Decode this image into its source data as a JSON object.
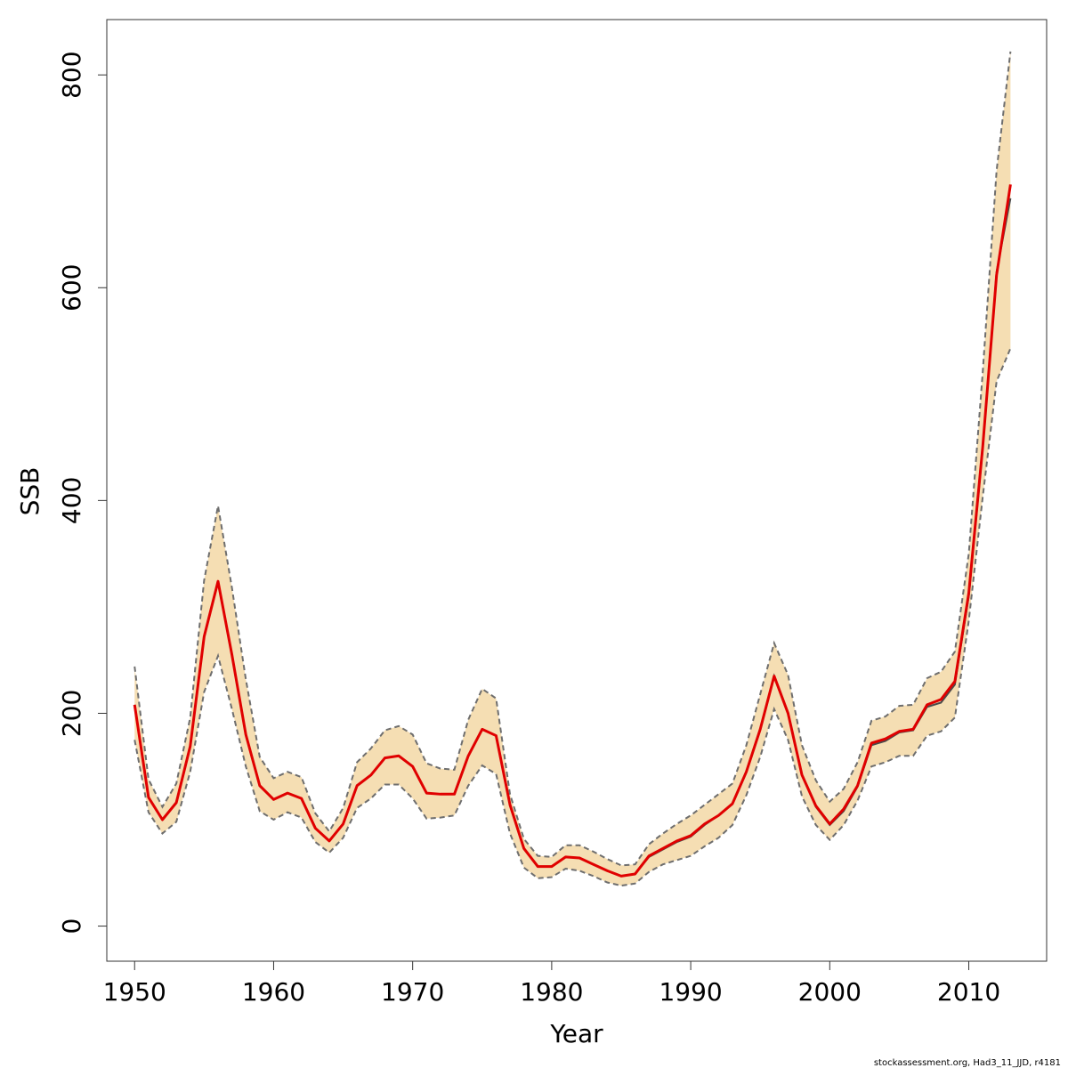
{
  "chart_data": {
    "type": "area",
    "title": "",
    "xlabel": "Year",
    "ylabel": "SSB",
    "xlim": [
      1948,
      2015.6
    ],
    "ylim": [
      -33,
      852
    ],
    "x_ticks": [
      1950,
      1960,
      1970,
      1980,
      1990,
      2000,
      2010
    ],
    "y_ticks": [
      0,
      200,
      400,
      600,
      800
    ],
    "grid": false,
    "legend": "none",
    "colors": {
      "band": "#f5deb3",
      "bounds": "#6e6e6e",
      "estimate": "#e00000",
      "alt_estimate": "#4a4a4a"
    },
    "x": [
      1950,
      1951,
      1952,
      1953,
      1954,
      1955,
      1956,
      1957,
      1958,
      1959,
      1960,
      1961,
      1962,
      1963,
      1964,
      1965,
      1966,
      1967,
      1968,
      1969,
      1970,
      1971,
      1972,
      1973,
      1974,
      1975,
      1976,
      1977,
      1978,
      1979,
      1980,
      1981,
      1982,
      1983,
      1984,
      1985,
      1986,
      1987,
      1988,
      1989,
      1990,
      1991,
      1992,
      1993,
      1994,
      1995,
      1996,
      1997,
      1998,
      1999,
      2000,
      2001,
      2002,
      2003,
      2004,
      2005,
      2006,
      2007,
      2008,
      2009,
      2010,
      2011,
      2012,
      2013
    ],
    "series": [
      {
        "role": "upper",
        "values": [
          244,
          138,
          112,
          134,
          196,
          325,
          395,
          318,
          232,
          159,
          139,
          145,
          140,
          106,
          89,
          111,
          154,
          167,
          184,
          188,
          180,
          153,
          148,
          147,
          194,
          223,
          214,
          124,
          82,
          66,
          65,
          76,
          76,
          70,
          63,
          57,
          58,
          77,
          87,
          96,
          104,
          114,
          124,
          134,
          170,
          218,
          266,
          236,
          170,
          137,
          117,
          129,
          154,
          193,
          197,
          207,
          208,
          233,
          239,
          258,
          350,
          520,
          710,
          822
        ],
        "values_note_unused": null
      },
      {
        "role": "lower",
        "values": [
          175,
          107,
          87,
          98,
          145,
          220,
          254,
          204,
          150,
          108,
          100,
          107,
          102,
          79,
          69,
          83,
          111,
          120,
          133,
          133,
          120,
          101,
          102,
          104,
          132,
          151,
          143,
          87,
          55,
          45,
          46,
          54,
          52,
          47,
          41,
          38,
          40,
          51,
          58,
          62,
          66,
          75,
          83,
          95,
          123,
          159,
          204,
          175,
          122,
          95,
          81,
          95,
          118,
          150,
          154,
          160,
          160,
          179,
          183,
          196,
          287,
          403,
          512,
          543
        ]
      },
      {
        "role": "estimate",
        "values": [
          208,
          121,
          100,
          116,
          169,
          272,
          324,
          255,
          180,
          132,
          119,
          125,
          120,
          92,
          80,
          96,
          132,
          142,
          158,
          160,
          150,
          125,
          124,
          124,
          160,
          185,
          179,
          114,
          73,
          56,
          56,
          65,
          64,
          58,
          52,
          47,
          49,
          66,
          73,
          80,
          85,
          96,
          104,
          115,
          145,
          185,
          235,
          200,
          142,
          113,
          96,
          110,
          132,
          172,
          176,
          183,
          185,
          208,
          213,
          230,
          313,
          450,
          612,
          697
        ]
      },
      {
        "role": "alt_estimate",
        "values": [
          208,
          121,
          100,
          116,
          169,
          272,
          324,
          255,
          180,
          132,
          119,
          125,
          120,
          92,
          80,
          96,
          132,
          142,
          158,
          160,
          150,
          125,
          124,
          124,
          160,
          185,
          179,
          114,
          73,
          56,
          56,
          65,
          64,
          58,
          52,
          47,
          49,
          65,
          72,
          79,
          84,
          95,
          104,
          115,
          145,
          185,
          235,
          200,
          142,
          112,
          95,
          108,
          131,
          170,
          174,
          182,
          184,
          206,
          210,
          227,
          310,
          448,
          615,
          684
        ]
      }
    ]
  },
  "footer_text": "stockassessment.org, Had3_11_JJD, r4181"
}
